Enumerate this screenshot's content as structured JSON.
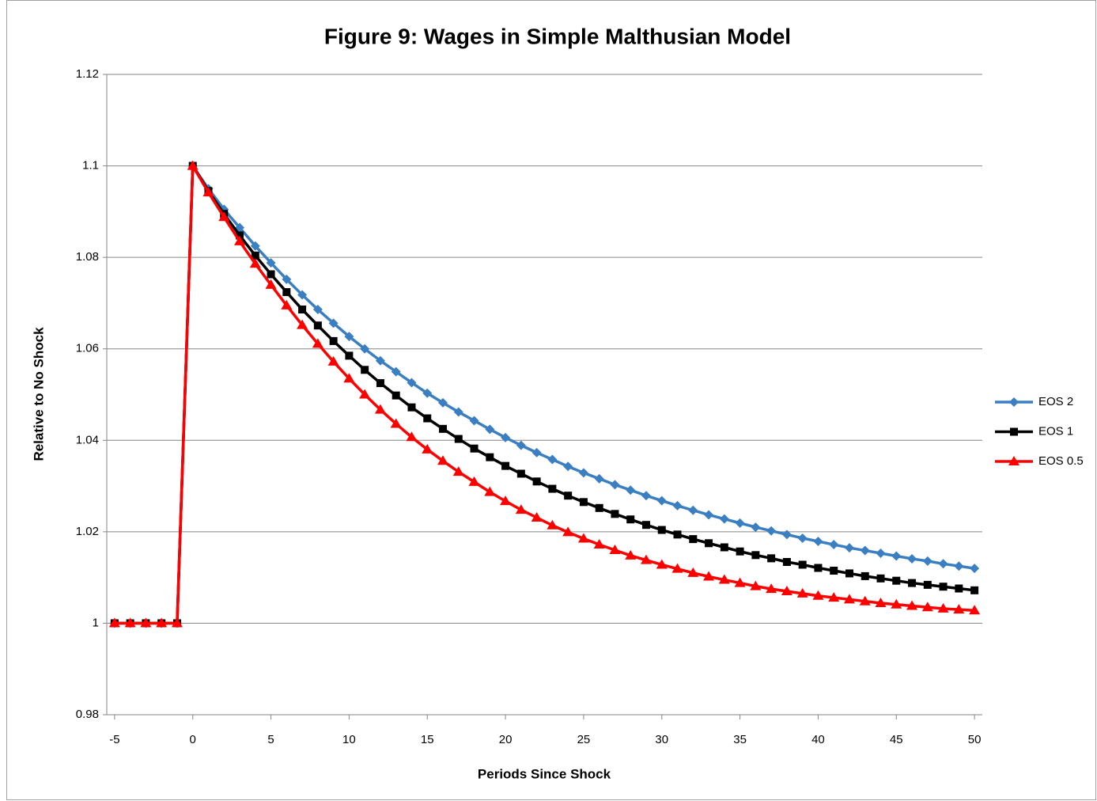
{
  "chart_data": {
    "type": "line",
    "title": "Figure 9:  Wages in Simple Malthusian Model",
    "x_label": "Periods Since Shock",
    "y_label": "Relative to No Shock",
    "x": [
      -5,
      -4,
      -3,
      -2,
      -1,
      0,
      1,
      2,
      3,
      4,
      5,
      6,
      7,
      8,
      9,
      10,
      11,
      12,
      13,
      14,
      15,
      16,
      17,
      18,
      19,
      20,
      21,
      22,
      23,
      24,
      25,
      26,
      27,
      28,
      29,
      30,
      31,
      32,
      33,
      34,
      35,
      36,
      37,
      38,
      39,
      40,
      41,
      42,
      43,
      44,
      45,
      46,
      47,
      48,
      49,
      50
    ],
    "xlim": [
      -5.5,
      50.5
    ],
    "xticks": [
      -5,
      0,
      5,
      10,
      15,
      20,
      25,
      30,
      35,
      40,
      45,
      50
    ],
    "ylim": [
      0.98,
      1.12
    ],
    "yticks": [
      0.98,
      1,
      1.02,
      1.04,
      1.06,
      1.08,
      1.1,
      1.12
    ],
    "grid": true,
    "legend": "right",
    "series": [
      {
        "name": "EOS 2",
        "color": "#3a7fc1",
        "marker": "diamond",
        "values": [
          1,
          1,
          1,
          1,
          1,
          1.1,
          1.095,
          1.0905,
          1.0865,
          1.0825,
          1.0788,
          1.0752,
          1.0718,
          1.0686,
          1.0656,
          1.0627,
          1.06,
          1.0574,
          1.055,
          1.0526,
          1.0503,
          1.0482,
          1.0462,
          1.0443,
          1.0424,
          1.0406,
          1.0389,
          1.0373,
          1.0358,
          1.0343,
          1.0329,
          1.0316,
          1.0303,
          1.0291,
          1.0279,
          1.0268,
          1.0257,
          1.0247,
          1.0237,
          1.0228,
          1.0219,
          1.021,
          1.0202,
          1.0194,
          1.0186,
          1.0179,
          1.0172,
          1.0165,
          1.0159,
          1.0153,
          1.0147,
          1.0141,
          1.0136,
          1.013,
          1.0125,
          1.012
        ]
      },
      {
        "name": "EOS 1",
        "color": "#000000",
        "marker": "square",
        "values": [
          1,
          1,
          1,
          1,
          1,
          1.1,
          1.0945,
          1.0895,
          1.0848,
          1.0804,
          1.0763,
          1.0724,
          1.0686,
          1.0651,
          1.0617,
          1.0585,
          1.0554,
          1.0525,
          1.0498,
          1.0472,
          1.0448,
          1.0425,
          1.0403,
          1.0382,
          1.0363,
          1.0344,
          1.0327,
          1.031,
          1.0294,
          1.0279,
          1.0265,
          1.0252,
          1.0239,
          1.0227,
          1.0215,
          1.0204,
          1.0194,
          1.0184,
          1.0175,
          1.0166,
          1.0157,
          1.0149,
          1.0142,
          1.0134,
          1.0128,
          1.0121,
          1.0115,
          1.0109,
          1.0103,
          1.0098,
          1.0093,
          1.0088,
          1.0084,
          1.008,
          1.0076,
          1.0072
        ]
      },
      {
        "name": "EOS 0.5",
        "color": "#ff0000",
        "marker": "triangle",
        "values": [
          1,
          1,
          1,
          1,
          1,
          1.1,
          1.0942,
          1.0888,
          1.0835,
          1.0786,
          1.074,
          1.0695,
          1.0652,
          1.0611,
          1.0572,
          1.0535,
          1.05,
          1.0467,
          1.0436,
          1.0407,
          1.038,
          1.0355,
          1.0331,
          1.0309,
          1.0287,
          1.0267,
          1.0248,
          1.0231,
          1.0214,
          1.0199,
          1.0185,
          1.0172,
          1.016,
          1.0148,
          1.0138,
          1.0128,
          1.0119,
          1.011,
          1.0102,
          1.0095,
          1.0088,
          1.0081,
          1.0075,
          1.007,
          1.0065,
          1.006,
          1.0056,
          1.0052,
          1.0048,
          1.0044,
          1.0041,
          1.0038,
          1.0035,
          1.0032,
          1.003,
          1.0028
        ]
      }
    ]
  }
}
